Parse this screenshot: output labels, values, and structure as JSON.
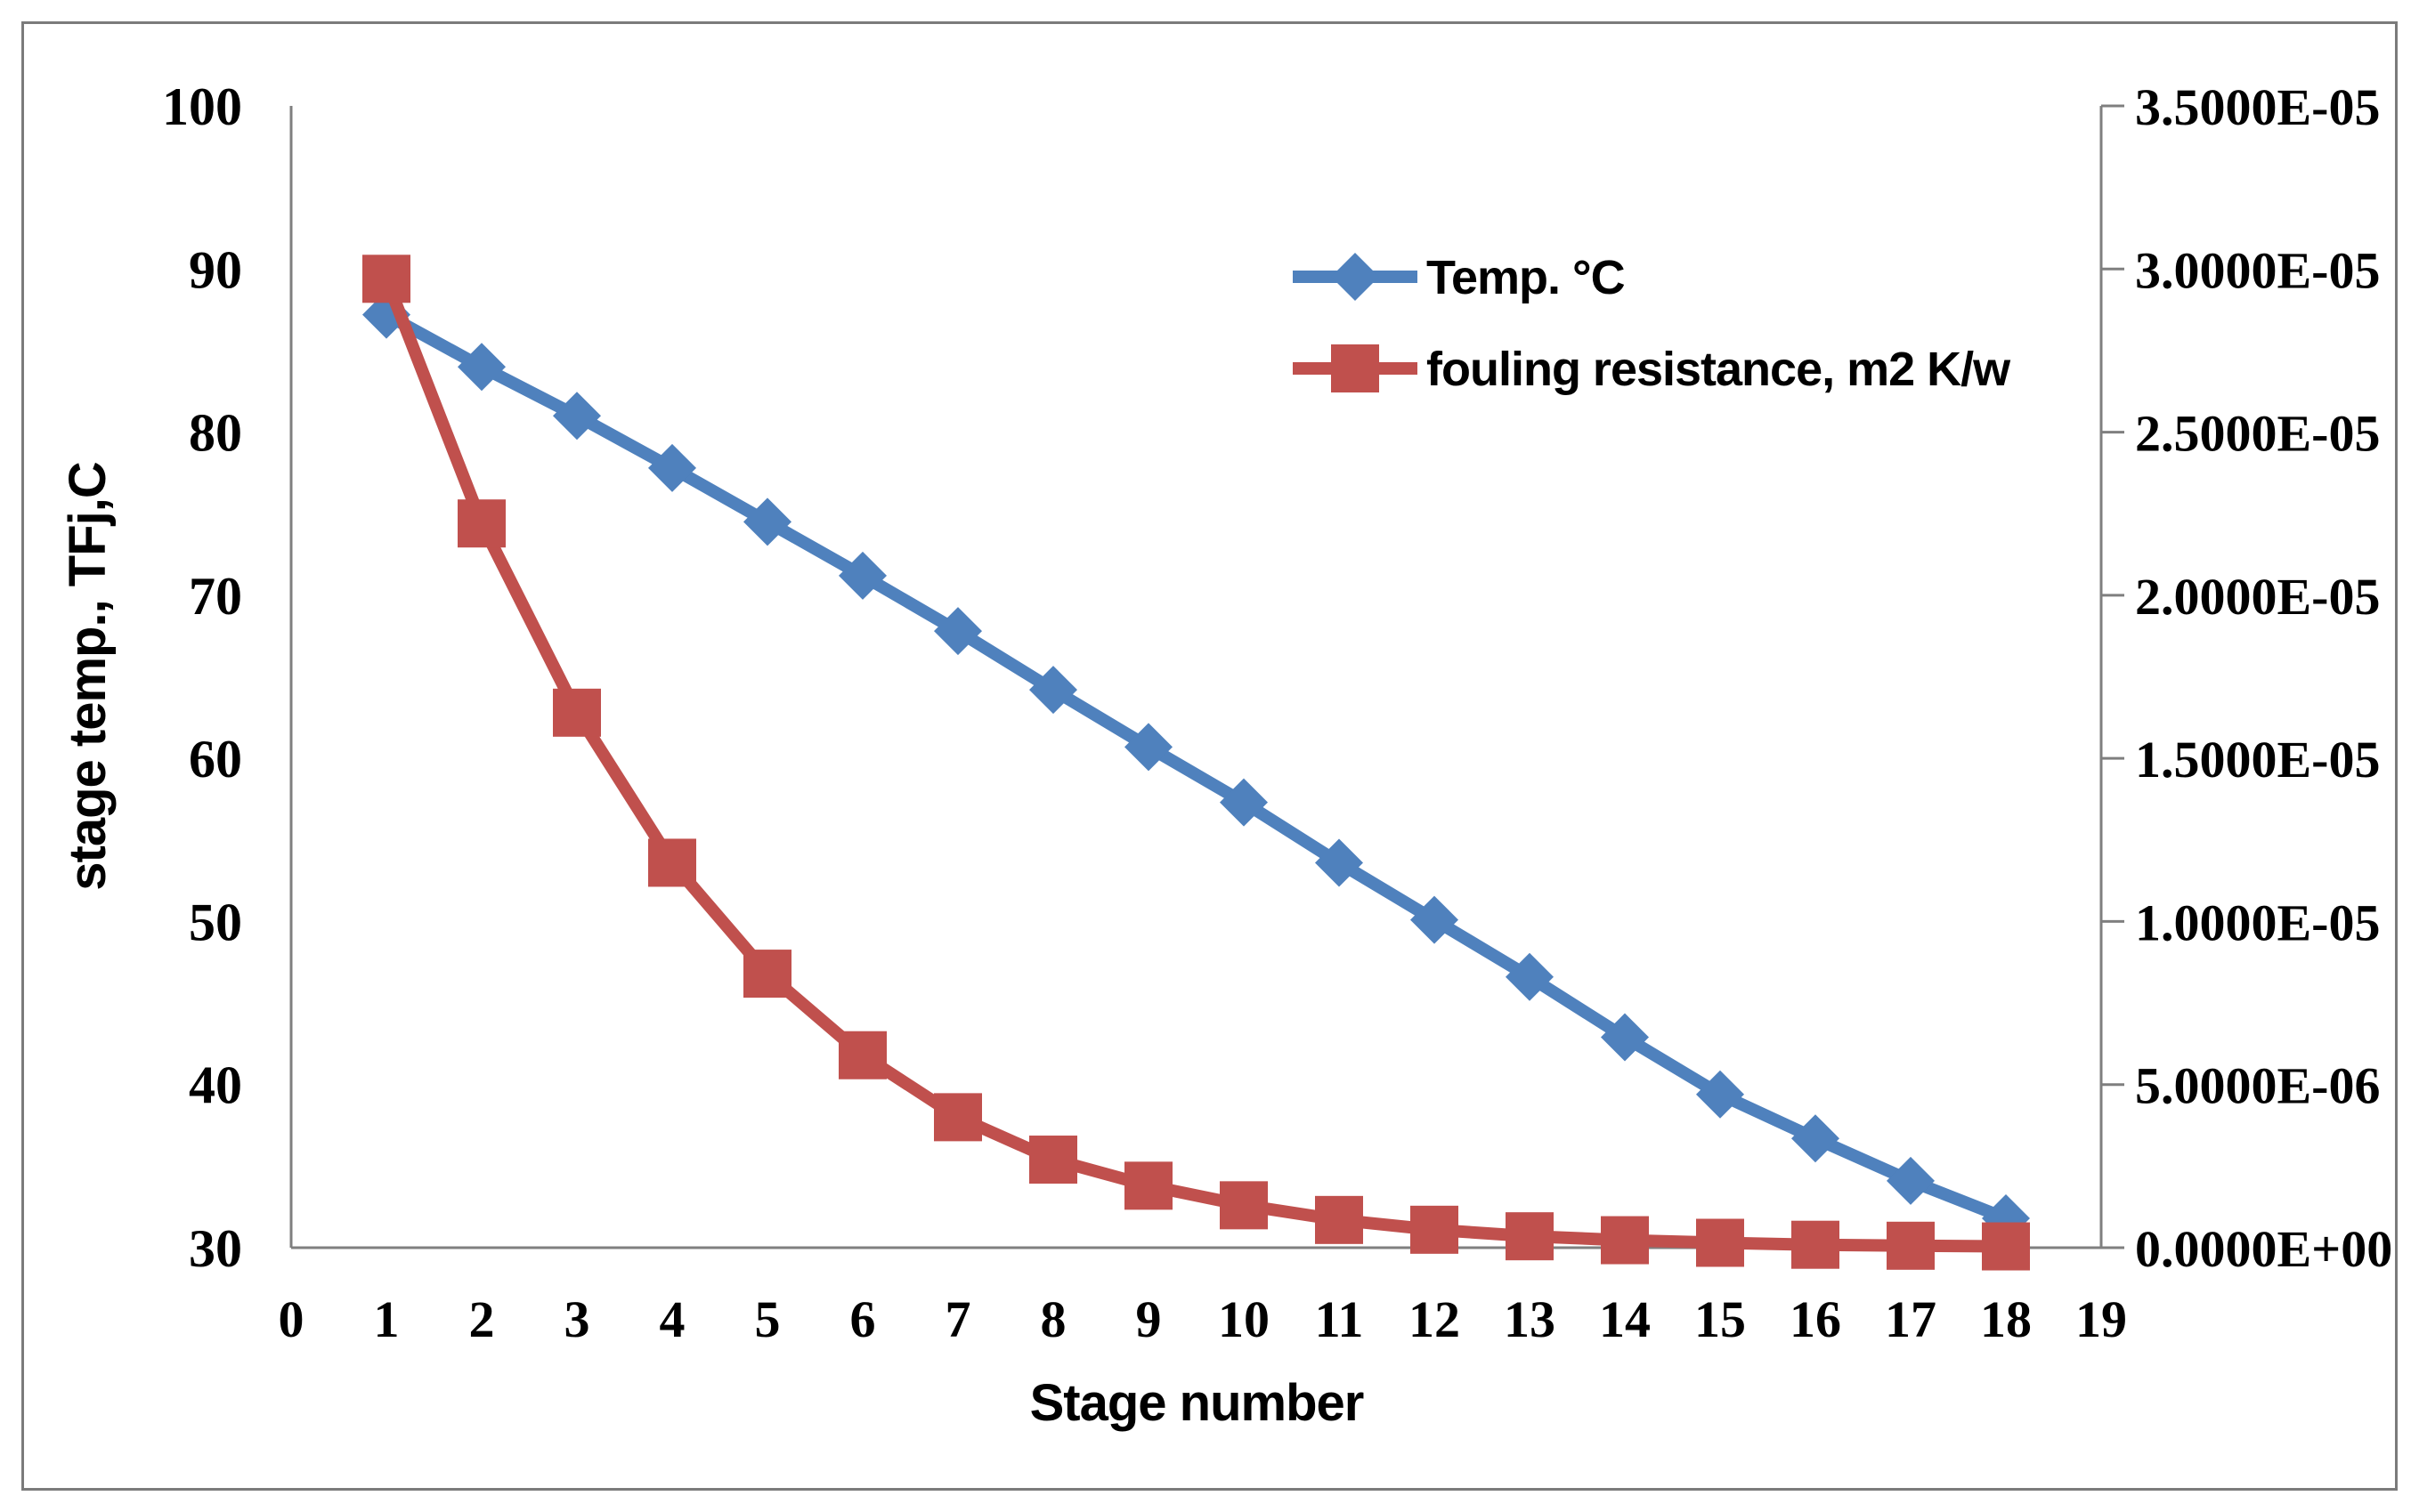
{
  "page": {
    "background": "#ffffff",
    "frame_border_color": "#7b7b7b"
  },
  "chart_data": {
    "type": "line",
    "title": "",
    "xlabel": "Stage number",
    "ylabel_left": "stage temp., TFj,C",
    "x_ticks": [
      "0",
      "1",
      "2",
      "3",
      "4",
      "5",
      "6",
      "7",
      "8",
      "9",
      "10",
      "11",
      "12",
      "13",
      "14",
      "15",
      "16",
      "17",
      "18",
      "19"
    ],
    "x_range": [
      0,
      19
    ],
    "left_axis": {
      "range": [
        30,
        100
      ],
      "ticks": [
        "100",
        "90",
        "80",
        "70",
        "60",
        "50",
        "40",
        "30"
      ],
      "tick_values": [
        100,
        90,
        80,
        70,
        60,
        50,
        40,
        30
      ]
    },
    "right_axis": {
      "range": [
        0,
        3.5e-05
      ],
      "ticks": [
        "3.5000E-05",
        "3.0000E-05",
        "2.5000E-05",
        "2.0000E-05",
        "1.5000E-05",
        "1.0000E-05",
        "5.0000E-06",
        "0.0000E+00"
      ],
      "tick_values": [
        3.5e-05,
        3e-05,
        2.5e-05,
        2e-05,
        1.5e-05,
        1e-05,
        5e-06,
        0
      ]
    },
    "stages": [
      1,
      2,
      3,
      4,
      5,
      6,
      7,
      8,
      9,
      10,
      11,
      12,
      13,
      14,
      15,
      16,
      17,
      18
    ],
    "series": [
      {
        "name": "Temp. °C",
        "axis": "left",
        "color": "#4F81BD",
        "marker": "diamond",
        "values": [
          87.2,
          84.0,
          81.0,
          77.8,
          74.5,
          71.2,
          67.8,
          64.2,
          60.7,
          57.3,
          53.6,
          50.1,
          46.6,
          42.9,
          39.4,
          36.7,
          34.1,
          31.8
        ]
      },
      {
        "name": "fouling resistance, m2 K/w",
        "axis": "right",
        "color": "#C0504D",
        "marker": "square",
        "values": [
          2.97e-05,
          2.22e-05,
          1.64e-05,
          1.18e-05,
          8.4e-06,
          5.9e-06,
          4e-06,
          2.7e-06,
          1.9e-06,
          1.3e-06,
          8.5e-07,
          5.5e-07,
          3.5e-07,
          2.3e-07,
          1.5e-07,
          9e-08,
          6e-08,
          4e-08
        ]
      }
    ],
    "legend": {
      "position": "inside-top-right",
      "entries": [
        "Temp. °C",
        "fouling resistance, m2 K/w"
      ]
    },
    "grid": false,
    "axis_color": "#7f7f7f",
    "text_color": "#000000"
  }
}
